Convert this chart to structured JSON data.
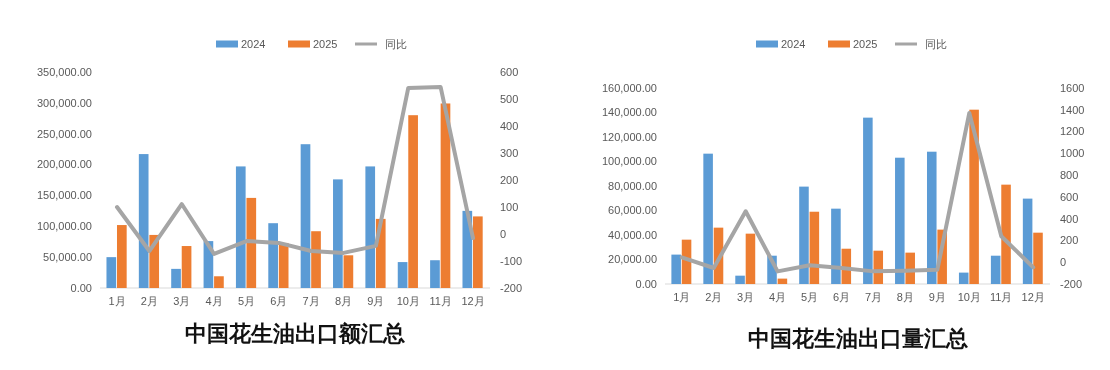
{
  "chart_data": [
    {
      "type": "bar",
      "title": "中国花生油出口额汇总",
      "categories": [
        "1月",
        "2月",
        "3月",
        "4月",
        "5月",
        "6月",
        "7月",
        "8月",
        "9月",
        "10月",
        "11月",
        "12月"
      ],
      "series": [
        {
          "name": "2024",
          "color": "#5b9bd5",
          "values": [
            50000,
            217000,
            31000,
            76000,
            197000,
            105000,
            233000,
            176000,
            197000,
            42000,
            45000,
            125000
          ]
        },
        {
          "name": "2025",
          "color": "#ed7d31",
          "values": [
            102000,
            86000,
            68000,
            19000,
            146000,
            73000,
            92000,
            53000,
            112000,
            280000,
            299000,
            116000
          ]
        },
        {
          "name": "同比",
          "type": "line",
          "axis": "y2",
          "color": "#a5a5a5",
          "values": [
            100,
            -63,
            111,
            -74,
            -26,
            -33,
            -63,
            -70,
            -44,
            541,
            544,
            -15
          ]
        }
      ],
      "ylim": [
        0,
        350000
      ],
      "yticks": [
        {
          "value": 0,
          "label": "0.00"
        },
        {
          "value": 50000,
          "label": "50,000.00"
        },
        {
          "value": 100000,
          "label": "100,000.00"
        },
        {
          "value": 150000,
          "label": "150,000.00"
        },
        {
          "value": 200000,
          "label": "200,000.00"
        },
        {
          "value": 250000,
          "label": "250,000.00"
        },
        {
          "value": 300000,
          "label": "300,000.00"
        },
        {
          "value": 350000,
          "label": "350,000.00"
        }
      ],
      "y2lim": [
        -200,
        600
      ],
      "y2ticks": [
        -200,
        -100,
        0,
        100,
        200,
        300,
        400,
        500,
        600
      ],
      "legend": "top"
    },
    {
      "type": "bar",
      "title": "中国花生油出口量汇总",
      "categories": [
        "1月",
        "2月",
        "3月",
        "4月",
        "5月",
        "6月",
        "7月",
        "8月",
        "9月",
        "10月",
        "11月",
        "12月"
      ],
      "series": [
        {
          "name": "2024",
          "color": "#5b9bd5",
          "values": [
            24000,
            106400,
            6800,
            23100,
            79500,
            61500,
            135800,
            103100,
            108000,
            9300,
            23100,
            69700
          ]
        },
        {
          "name": "2025",
          "color": "#ed7d31",
          "values": [
            36200,
            46000,
            41100,
            4400,
            59000,
            28800,
            27200,
            25600,
            44400,
            142300,
            81100,
            41900
          ]
        },
        {
          "name": "同比",
          "type": "line",
          "axis": "y2",
          "color": "#a5a5a5",
          "values": [
            45,
            -53,
            468,
            -84,
            -28,
            -53,
            -84,
            -78,
            -68,
            1371,
            238,
            -47
          ]
        }
      ],
      "ylim": [
        0,
        160000
      ],
      "yticks": [
        {
          "value": 0,
          "label": "0.00"
        },
        {
          "value": 20000,
          "label": "20,000.00"
        },
        {
          "value": 40000,
          "label": "40,000.00"
        },
        {
          "value": 60000,
          "label": "60,000.00"
        },
        {
          "value": 80000,
          "label": "80,000.00"
        },
        {
          "value": 100000,
          "label": "100,000.00"
        },
        {
          "value": 120000,
          "label": "120,000.00"
        },
        {
          "value": 140000,
          "label": "140,000.00"
        },
        {
          "value": 160000,
          "label": "160,000.00"
        }
      ],
      "y2lim": [
        -200,
        1600
      ],
      "y2ticks": [
        -200,
        0,
        200,
        400,
        600,
        800,
        1000,
        1200,
        1400,
        1600
      ],
      "legend": "top"
    }
  ]
}
